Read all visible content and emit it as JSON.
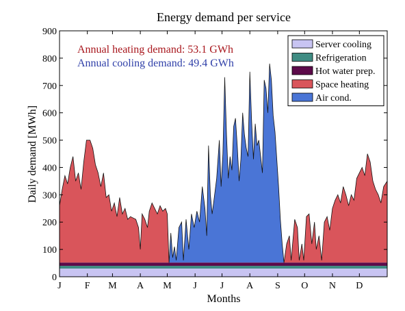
{
  "chart_data": {
    "type": "area",
    "stacked": true,
    "title": "Energy demand per service",
    "xlabel": "Months",
    "ylabel": "Daily demand [MWh]",
    "ylim": [
      0,
      900
    ],
    "yticks": [
      0,
      100,
      200,
      300,
      400,
      500,
      600,
      700,
      800,
      900
    ],
    "xlim": [
      0,
      365
    ],
    "month_ticks": [
      {
        "label": "J",
        "day": 0
      },
      {
        "label": "F",
        "day": 31
      },
      {
        "label": "M",
        "day": 59
      },
      {
        "label": "A",
        "day": 90
      },
      {
        "label": "M",
        "day": 120
      },
      {
        "label": "J",
        "day": 151
      },
      {
        "label": "J",
        "day": 181
      },
      {
        "label": "A",
        "day": 212
      },
      {
        "label": "S",
        "day": 243
      },
      {
        "label": "O",
        "day": 273
      },
      {
        "label": "N",
        "day": 304
      },
      {
        "label": "D",
        "day": 334
      }
    ],
    "grid": false,
    "legend_position": "top-right",
    "annotations": [
      {
        "text": "Annual heating demand: 53.1 GWh",
        "color": "#a8161c"
      },
      {
        "text": "Annual cooling demand: 49.4 GWh",
        "color": "#2f3fa8"
      }
    ],
    "baseline_series": [
      {
        "name": "Server cooling",
        "color": "#c8c4f2",
        "value": 30
      },
      {
        "name": "Refrigeration",
        "color": "#3f8c83",
        "value": 10
      },
      {
        "name": "Hot water prep.",
        "color": "#5c0a4a",
        "value": 12
      }
    ],
    "seasonal_series": [
      {
        "name": "Space heating",
        "color": "#d9555b",
        "points": [
          [
            0,
            260
          ],
          [
            3,
            320
          ],
          [
            6,
            370
          ],
          [
            9,
            340
          ],
          [
            12,
            400
          ],
          [
            15,
            440
          ],
          [
            18,
            350
          ],
          [
            21,
            380
          ],
          [
            24,
            320
          ],
          [
            27,
            420
          ],
          [
            30,
            500
          ],
          [
            34,
            500
          ],
          [
            37,
            470
          ],
          [
            40,
            410
          ],
          [
            43,
            380
          ],
          [
            46,
            330
          ],
          [
            49,
            380
          ],
          [
            52,
            290
          ],
          [
            55,
            300
          ],
          [
            58,
            240
          ],
          [
            61,
            270
          ],
          [
            64,
            220
          ],
          [
            67,
            290
          ],
          [
            70,
            230
          ],
          [
            73,
            250
          ],
          [
            76,
            210
          ],
          [
            79,
            220
          ],
          [
            82,
            215
          ],
          [
            85,
            210
          ],
          [
            88,
            180
          ],
          [
            90,
            100
          ],
          [
            92,
            230
          ],
          [
            95,
            210
          ],
          [
            98,
            180
          ],
          [
            100,
            240
          ],
          [
            103,
            270
          ],
          [
            106,
            250
          ],
          [
            109,
            230
          ],
          [
            112,
            260
          ],
          [
            115,
            240
          ],
          [
            118,
            250
          ],
          [
            120,
            230
          ],
          [
            122,
            52
          ],
          [
            250,
            52
          ],
          [
            253,
            120
          ],
          [
            256,
            150
          ],
          [
            258,
            60
          ],
          [
            262,
            210
          ],
          [
            265,
            180
          ],
          [
            267,
            60
          ],
          [
            270,
            120
          ],
          [
            272,
            60
          ],
          [
            275,
            220
          ],
          [
            278,
            230
          ],
          [
            281,
            120
          ],
          [
            284,
            200
          ],
          [
            286,
            100
          ],
          [
            289,
            150
          ],
          [
            292,
            60
          ],
          [
            295,
            200
          ],
          [
            298,
            220
          ],
          [
            301,
            170
          ],
          [
            304,
            250
          ],
          [
            307,
            280
          ],
          [
            310,
            300
          ],
          [
            313,
            270
          ],
          [
            316,
            330
          ],
          [
            319,
            300
          ],
          [
            322,
            260
          ],
          [
            325,
            300
          ],
          [
            328,
            280
          ],
          [
            331,
            360
          ],
          [
            334,
            380
          ],
          [
            337,
            400
          ],
          [
            340,
            370
          ],
          [
            343,
            450
          ],
          [
            346,
            420
          ],
          [
            349,
            350
          ],
          [
            352,
            320
          ],
          [
            355,
            300
          ],
          [
            358,
            270
          ],
          [
            361,
            330
          ],
          [
            365,
            350
          ]
        ]
      },
      {
        "name": "Air cond.",
        "color": "#4a75d6",
        "points": [
          [
            0,
            52
          ],
          [
            122,
            52
          ],
          [
            124,
            160
          ],
          [
            126,
            70
          ],
          [
            128,
            110
          ],
          [
            130,
            60
          ],
          [
            133,
            180
          ],
          [
            136,
            200
          ],
          [
            138,
            60
          ],
          [
            141,
            210
          ],
          [
            144,
            100
          ],
          [
            147,
            230
          ],
          [
            150,
            180
          ],
          [
            153,
            240
          ],
          [
            156,
            200
          ],
          [
            159,
            330
          ],
          [
            162,
            250
          ],
          [
            164,
            150
          ],
          [
            166,
            480
          ],
          [
            168,
            300
          ],
          [
            170,
            230
          ],
          [
            172,
            280
          ],
          [
            175,
            360
          ],
          [
            178,
            500
          ],
          [
            180,
            330
          ],
          [
            182,
            450
          ],
          [
            184,
            730
          ],
          [
            186,
            520
          ],
          [
            188,
            360
          ],
          [
            190,
            440
          ],
          [
            192,
            390
          ],
          [
            194,
            550
          ],
          [
            196,
            580
          ],
          [
            198,
            480
          ],
          [
            200,
            350
          ],
          [
            202,
            430
          ],
          [
            204,
            600
          ],
          [
            206,
            520
          ],
          [
            208,
            470
          ],
          [
            210,
            440
          ],
          [
            212,
            750
          ],
          [
            214,
            570
          ],
          [
            216,
            430
          ],
          [
            218,
            560
          ],
          [
            220,
            480
          ],
          [
            222,
            500
          ],
          [
            224,
            440
          ],
          [
            226,
            380
          ],
          [
            228,
            720
          ],
          [
            230,
            690
          ],
          [
            232,
            600
          ],
          [
            234,
            780
          ],
          [
            236,
            720
          ],
          [
            238,
            590
          ],
          [
            240,
            530
          ],
          [
            242,
            430
          ],
          [
            244,
            330
          ],
          [
            246,
            210
          ],
          [
            248,
            120
          ],
          [
            250,
            52
          ],
          [
            365,
            52
          ]
        ]
      }
    ]
  }
}
